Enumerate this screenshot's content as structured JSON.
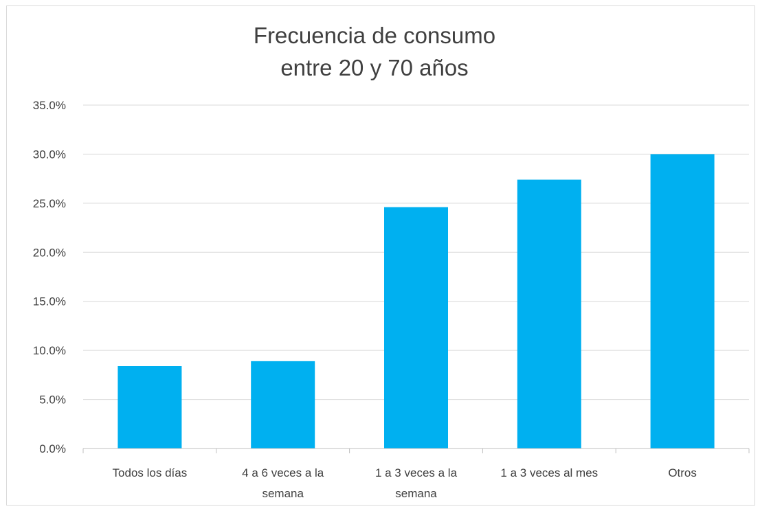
{
  "chart_data": {
    "type": "bar",
    "title_lines": [
      "Frecuencia de consumo",
      "entre  20  y  70  años"
    ],
    "categories": [
      [
        "Todos los días"
      ],
      [
        "4 a 6 veces a la",
        "semana"
      ],
      [
        "1 a 3 veces a la",
        "semana"
      ],
      [
        "1 a 3 veces al mes"
      ],
      [
        "Otros"
      ]
    ],
    "values": [
      8.4,
      8.9,
      24.6,
      27.4,
      30.0
    ],
    "y_ticks": [
      "0.0%",
      "5.0%",
      "10.0%",
      "15.0%",
      "20.0%",
      "25.0%",
      "30.0%",
      "35.0%"
    ],
    "ylim": [
      0,
      35
    ],
    "grid": true,
    "legend": "none",
    "colors": {
      "bar": "#00b0f0",
      "grid": "#d9d9d9",
      "axis": "#bfbfbf",
      "text": "#404040",
      "title": "#404040"
    }
  }
}
